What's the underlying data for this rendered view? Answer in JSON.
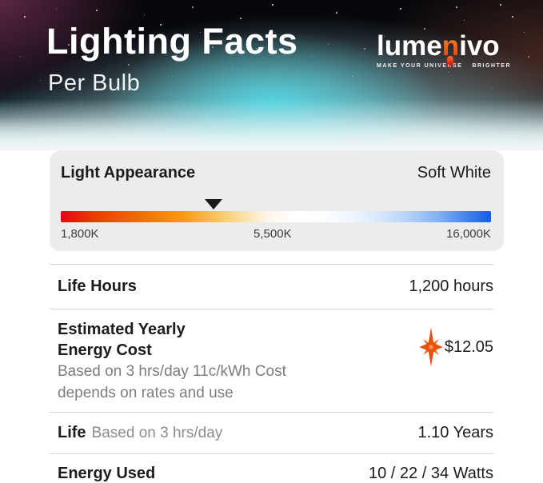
{
  "header": {
    "title": "Lighting Facts",
    "subtitle": "Per Bulb",
    "logo": {
      "text_pre": "lume",
      "text_accent": "n",
      "text_post": "ivo",
      "tagline_left": "MAKE YOUR UNIVERSE",
      "tagline_right": "BRIGHTER",
      "accent_color": "#f2621c",
      "bulb_color": "#e52508"
    }
  },
  "light_appearance": {
    "label": "Light Appearance",
    "value": "Soft White",
    "scale": {
      "min_label": "1,800K",
      "mid_label": "5,500K",
      "max_label": "16,000K",
      "marker_position_pct": 35.5,
      "gradient_colors": [
        "#e30613",
        "#f46b00",
        "#f9b23c",
        "#ffffff",
        "#9cc4f5",
        "#155bec"
      ]
    }
  },
  "rows": {
    "life_hours": {
      "label": "Life Hours",
      "value": "1,200 hours"
    },
    "energy_cost": {
      "label_line1": "Estimated Yearly",
      "label_line2": "Energy Cost",
      "note_line1": "Based on 3 hrs/day 11c/kWh Cost",
      "note_line2": "depends on rates and use",
      "value": "$12.05",
      "icon": "sparkle-star",
      "icon_color": "#e8500f"
    },
    "life": {
      "label": "Life",
      "note": "Based on 3 hrs/day",
      "value": "1.10 Years"
    },
    "energy_used": {
      "label": "Energy Used",
      "value": "10 / 22 / 34 Watts"
    }
  },
  "colors": {
    "card_background": "#ececee",
    "divider": "#d8d8da",
    "text_primary": "#1c1c1c",
    "text_note": "#7d7d7d",
    "hero_glow": "#52dce9"
  }
}
